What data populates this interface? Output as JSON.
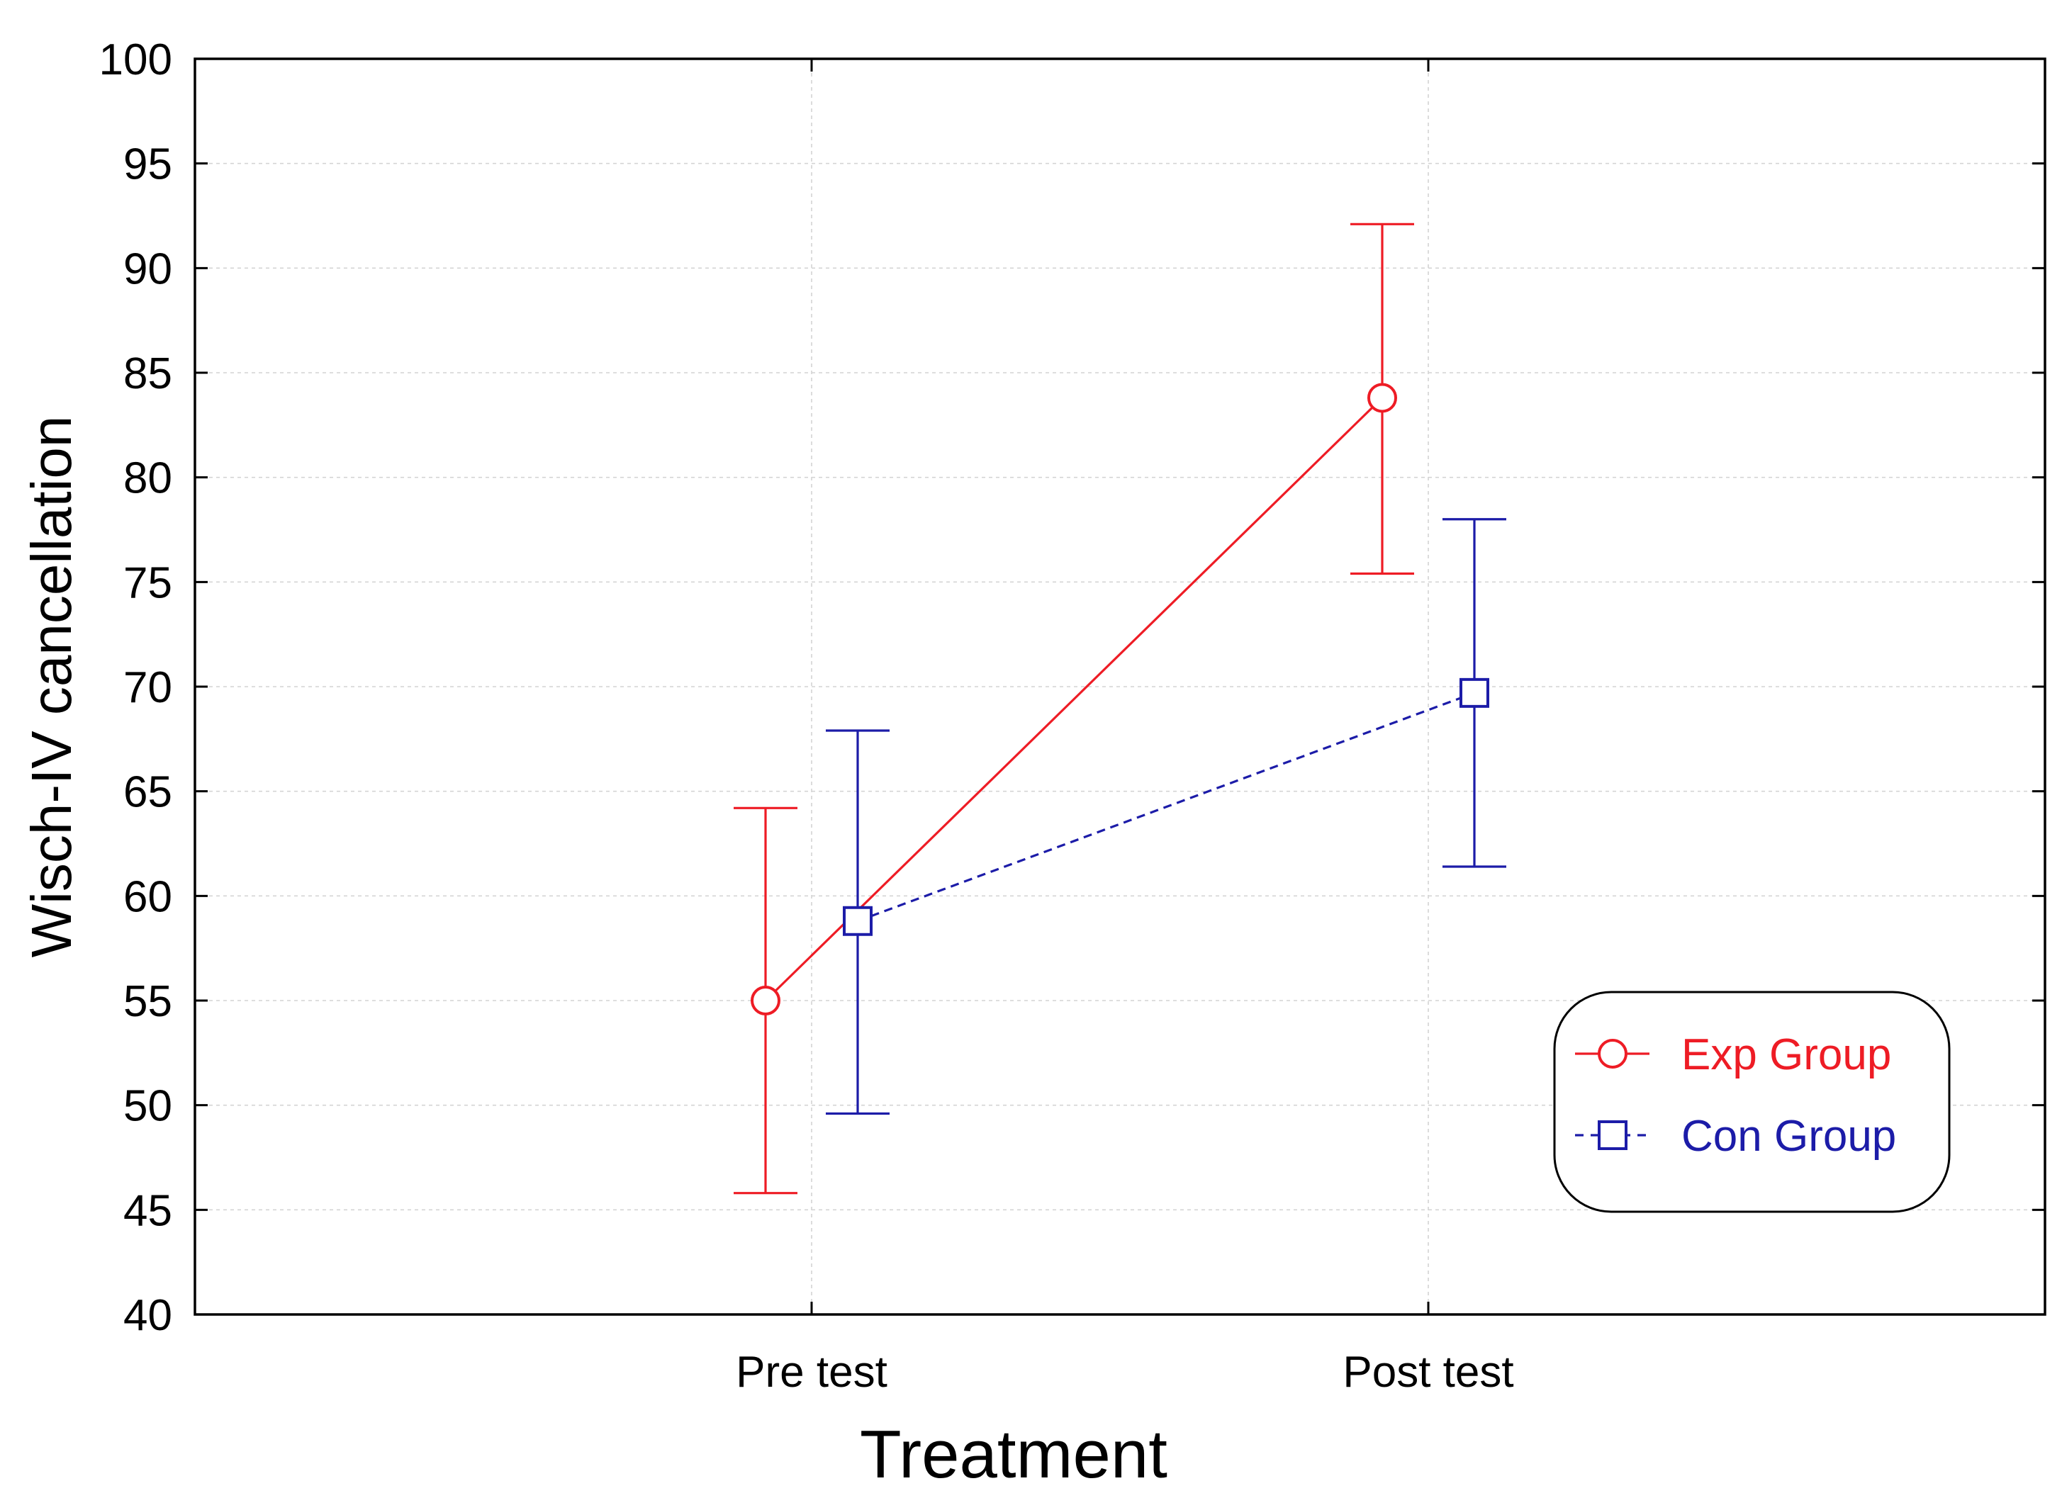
{
  "chart_data": {
    "type": "line",
    "title": "",
    "xlabel": "Treatment",
    "ylabel": "Wisch-IV cancellation",
    "categories": [
      "Pre test",
      "Post test"
    ],
    "ylim": [
      40,
      100
    ],
    "yticks": [
      40,
      45,
      50,
      55,
      60,
      65,
      70,
      75,
      80,
      85,
      90,
      95,
      100
    ],
    "grid": true,
    "legend_position": "bottom-right",
    "series": [
      {
        "name": "Exp Group",
        "color": "#ee1c25",
        "marker": "circle",
        "line_style": "solid",
        "values": [
          55.0,
          83.8
        ],
        "err_low": [
          45.8,
          75.4
        ],
        "err_high": [
          64.2,
          92.1
        ]
      },
      {
        "name": "Con Group",
        "color": "#1c1ca8",
        "marker": "square",
        "line_style": "dashed",
        "values": [
          58.8,
          69.7
        ],
        "err_low": [
          49.6,
          61.4
        ],
        "err_high": [
          67.9,
          78.0
        ]
      }
    ]
  }
}
